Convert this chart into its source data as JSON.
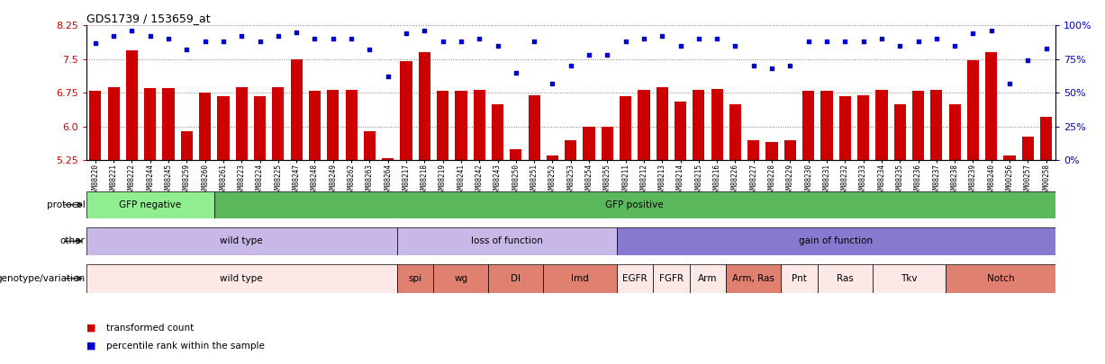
{
  "title": "GDS1739 / 153659_at",
  "ylim": [
    5.25,
    8.25
  ],
  "yticks": [
    5.25,
    6.0,
    6.75,
    7.5,
    8.25
  ],
  "right_yticks": [
    0,
    25,
    50,
    75,
    100
  ],
  "right_ylim": [
    0,
    100
  ],
  "bar_color": "#cc0000",
  "dot_color": "#0000cc",
  "samples": [
    "GSM88220",
    "GSM88221",
    "GSM88222",
    "GSM88244",
    "GSM88245",
    "GSM88259",
    "GSM88260",
    "GSM88261",
    "GSM88223",
    "GSM88224",
    "GSM88225",
    "GSM88247",
    "GSM88248",
    "GSM88249",
    "GSM88262",
    "GSM88263",
    "GSM88264",
    "GSM88217",
    "GSM88218",
    "GSM88219",
    "GSM88241",
    "GSM88242",
    "GSM88243",
    "GSM88250",
    "GSM88251",
    "GSM88252",
    "GSM88253",
    "GSM88254",
    "GSM88255",
    "GSM88211",
    "GSM88212",
    "GSM88213",
    "GSM88214",
    "GSM88215",
    "GSM88216",
    "GSM88226",
    "GSM88227",
    "GSM88228",
    "GSM88229",
    "GSM88230",
    "GSM88231",
    "GSM88232",
    "GSM88233",
    "GSM88234",
    "GSM88235",
    "GSM88236",
    "GSM88237",
    "GSM88238",
    "GSM88239",
    "GSM88240",
    "GSM00256",
    "GSM00257",
    "GSM00258"
  ],
  "bar_values": [
    6.8,
    6.87,
    7.7,
    6.85,
    6.85,
    5.9,
    6.75,
    6.67,
    6.87,
    6.67,
    6.87,
    7.5,
    6.8,
    6.82,
    6.82,
    5.9,
    5.3,
    7.45,
    7.65,
    6.8,
    6.8,
    6.82,
    6.5,
    5.5,
    6.7,
    5.35,
    5.7,
    6.0,
    6.0,
    6.67,
    6.82,
    6.87,
    6.55,
    6.82,
    6.83,
    6.5,
    5.7,
    5.65,
    5.7,
    6.8,
    6.8,
    6.67,
    6.7,
    6.82,
    6.5,
    6.8,
    6.82,
    6.5,
    7.47,
    7.65,
    5.35,
    5.78,
    6.22
  ],
  "dot_values": [
    87,
    92,
    96,
    92,
    90,
    82,
    88,
    88,
    92,
    88,
    92,
    95,
    90,
    90,
    90,
    82,
    62,
    94,
    96,
    88,
    88,
    90,
    85,
    65,
    88,
    57,
    70,
    78,
    78,
    88,
    90,
    92,
    85,
    90,
    90,
    85,
    70,
    68,
    70,
    88,
    88,
    88,
    88,
    90,
    85,
    88,
    90,
    85,
    94,
    96,
    57,
    74,
    83
  ],
  "protocol_groups": [
    {
      "label": "GFP negative",
      "start": 0,
      "end": 7,
      "color": "#90ee90"
    },
    {
      "label": "GFP positive",
      "start": 7,
      "end": 53,
      "color": "#5cb85c"
    }
  ],
  "other_groups": [
    {
      "label": "wild type",
      "start": 0,
      "end": 17,
      "color": "#c8b8e8"
    },
    {
      "label": "loss of function",
      "start": 17,
      "end": 29,
      "color": "#c8b8e8"
    },
    {
      "label": "gain of function",
      "start": 29,
      "end": 53,
      "color": "#8878d0"
    }
  ],
  "genotype_groups": [
    {
      "label": "wild type",
      "start": 0,
      "end": 17,
      "color": "#fde8e8"
    },
    {
      "label": "spi",
      "start": 17,
      "end": 19,
      "color": "#e08070"
    },
    {
      "label": "wg",
      "start": 19,
      "end": 22,
      "color": "#e08070"
    },
    {
      "label": "Dl",
      "start": 22,
      "end": 25,
      "color": "#e08070"
    },
    {
      "label": "Imd",
      "start": 25,
      "end": 29,
      "color": "#e08070"
    },
    {
      "label": "EGFR",
      "start": 29,
      "end": 31,
      "color": "#fde8e8"
    },
    {
      "label": "FGFR",
      "start": 31,
      "end": 33,
      "color": "#fde8e8"
    },
    {
      "label": "Arm",
      "start": 33,
      "end": 35,
      "color": "#fde8e8"
    },
    {
      "label": "Arm, Ras",
      "start": 35,
      "end": 38,
      "color": "#e08070"
    },
    {
      "label": "Pnt",
      "start": 38,
      "end": 40,
      "color": "#fde8e8"
    },
    {
      "label": "Ras",
      "start": 40,
      "end": 43,
      "color": "#fde8e8"
    },
    {
      "label": "Tkv",
      "start": 43,
      "end": 47,
      "color": "#fde8e8"
    },
    {
      "label": "Notch",
      "start": 47,
      "end": 53,
      "color": "#e08070"
    }
  ],
  "legend_items": [
    {
      "label": "transformed count",
      "color": "#cc0000"
    },
    {
      "label": "percentile rank within the sample",
      "color": "#0000cc"
    }
  ],
  "tick_label_color": "#cc0000",
  "right_tick_color": "#0000cc"
}
